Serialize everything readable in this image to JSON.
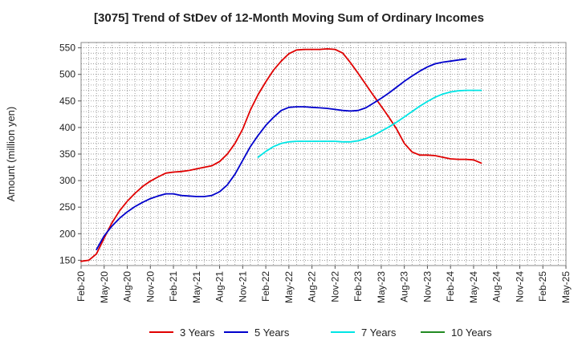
{
  "chart_data": {
    "type": "line",
    "title": "[3075]  Trend of StDev of 12-Month Moving Sum of Ordinary Incomes",
    "ylabel": "Amount (million yen)",
    "xlabel": "",
    "ylim": [
      140,
      560
    ],
    "yticks": [
      150,
      200,
      250,
      300,
      350,
      400,
      450,
      500,
      550
    ],
    "x_ticks": [
      "Feb-20",
      "May-20",
      "Aug-20",
      "Nov-20",
      "Feb-21",
      "May-21",
      "Aug-21",
      "Nov-21",
      "Feb-22",
      "May-22",
      "Aug-22",
      "Nov-22",
      "Feb-23",
      "May-23",
      "Aug-23",
      "Nov-23",
      "Feb-24",
      "May-24",
      "Aug-24",
      "Nov-24",
      "Feb-25",
      "May-25"
    ],
    "grid": true,
    "legend_position": "bottom",
    "series": [
      {
        "name": "3 Years",
        "color": "#e00000",
        "points": [
          [
            0,
            148
          ],
          [
            1,
            150
          ],
          [
            2,
            162
          ],
          [
            3,
            192
          ],
          [
            4,
            220
          ],
          [
            5,
            243
          ],
          [
            6,
            261
          ],
          [
            7,
            276
          ],
          [
            8,
            289
          ],
          [
            9,
            299
          ],
          [
            10,
            307
          ],
          [
            11,
            314
          ],
          [
            12,
            316
          ],
          [
            13,
            317
          ],
          [
            14,
            319
          ],
          [
            15,
            322
          ],
          [
            16,
            325
          ],
          [
            17,
            328
          ],
          [
            18,
            336
          ],
          [
            19,
            350
          ],
          [
            20,
            370
          ],
          [
            21,
            397
          ],
          [
            22,
            433
          ],
          [
            23,
            462
          ],
          [
            24,
            486
          ],
          [
            25,
            508
          ],
          [
            26,
            525
          ],
          [
            27,
            539
          ],
          [
            28,
            546
          ],
          [
            29,
            547
          ],
          [
            30,
            547
          ],
          [
            31,
            547
          ],
          [
            32,
            548
          ],
          [
            33,
            547
          ],
          [
            34,
            540
          ],
          [
            35,
            522
          ],
          [
            36,
            502
          ],
          [
            37,
            481
          ],
          [
            38,
            460
          ],
          [
            39,
            440
          ],
          [
            40,
            419
          ],
          [
            41,
            397
          ],
          [
            42,
            370
          ],
          [
            43,
            354
          ],
          [
            44,
            348
          ],
          [
            45,
            348
          ],
          [
            46,
            347
          ],
          [
            47,
            344
          ],
          [
            48,
            341
          ],
          [
            49,
            340
          ],
          [
            50,
            340
          ],
          [
            51,
            339
          ],
          [
            52,
            333
          ]
        ]
      },
      {
        "name": "5 Years",
        "color": "#0000cc",
        "points": [
          [
            2,
            170
          ],
          [
            3,
            196
          ],
          [
            4,
            214
          ],
          [
            5,
            229
          ],
          [
            6,
            241
          ],
          [
            7,
            251
          ],
          [
            8,
            259
          ],
          [
            9,
            266
          ],
          [
            10,
            271
          ],
          [
            11,
            275
          ],
          [
            12,
            275
          ],
          [
            13,
            272
          ],
          [
            14,
            271
          ],
          [
            15,
            270
          ],
          [
            16,
            270
          ],
          [
            17,
            272
          ],
          [
            18,
            279
          ],
          [
            19,
            292
          ],
          [
            20,
            312
          ],
          [
            21,
            338
          ],
          [
            22,
            364
          ],
          [
            23,
            385
          ],
          [
            24,
            404
          ],
          [
            25,
            419
          ],
          [
            26,
            432
          ],
          [
            27,
            438
          ],
          [
            28,
            439
          ],
          [
            29,
            439
          ],
          [
            30,
            438
          ],
          [
            31,
            437
          ],
          [
            32,
            436
          ],
          [
            33,
            434
          ],
          [
            34,
            432
          ],
          [
            35,
            431
          ],
          [
            36,
            432
          ],
          [
            37,
            437
          ],
          [
            38,
            446
          ],
          [
            39,
            455
          ],
          [
            40,
            465
          ],
          [
            41,
            476
          ],
          [
            42,
            487
          ],
          [
            43,
            497
          ],
          [
            44,
            506
          ],
          [
            45,
            514
          ],
          [
            46,
            520
          ],
          [
            47,
            523
          ],
          [
            48,
            525
          ],
          [
            49,
            527
          ],
          [
            50,
            529
          ]
        ]
      },
      {
        "name": "7 Years",
        "color": "#00e5e5",
        "points": [
          [
            23,
            344
          ],
          [
            24,
            355
          ],
          [
            25,
            364
          ],
          [
            26,
            370
          ],
          [
            27,
            373
          ],
          [
            28,
            374
          ],
          [
            29,
            374
          ],
          [
            30,
            374
          ],
          [
            31,
            374
          ],
          [
            32,
            374
          ],
          [
            33,
            374
          ],
          [
            34,
            373
          ],
          [
            35,
            373
          ],
          [
            36,
            375
          ],
          [
            37,
            379
          ],
          [
            38,
            385
          ],
          [
            39,
            393
          ],
          [
            40,
            401
          ],
          [
            41,
            410
          ],
          [
            42,
            420
          ],
          [
            43,
            430
          ],
          [
            44,
            440
          ],
          [
            45,
            449
          ],
          [
            46,
            457
          ],
          [
            47,
            463
          ],
          [
            48,
            467
          ],
          [
            49,
            469
          ],
          [
            50,
            470
          ],
          [
            51,
            470
          ],
          [
            52,
            470
          ]
        ]
      },
      {
        "name": "10 Years",
        "color": "#228b22",
        "points": []
      }
    ]
  }
}
